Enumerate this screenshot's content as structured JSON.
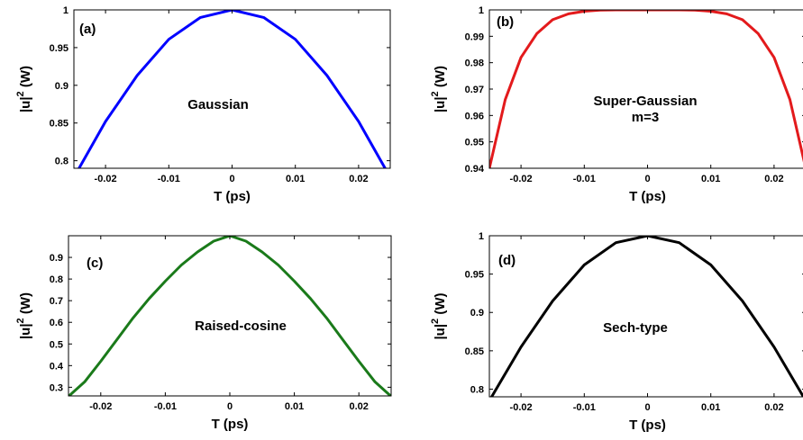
{
  "chart_data": [
    {
      "id": "a",
      "type": "line",
      "panel_label": "(a)",
      "annotation": [
        "Gaussian"
      ],
      "xlabel": "T (ps)",
      "ylabel_main": "|u|",
      "ylabel_sup": "2",
      "ylabel_unit": " (W)",
      "xlim": [
        -0.025,
        0.025
      ],
      "ylim": [
        0.79,
        1.0
      ],
      "xticks": [
        -0.02,
        -0.01,
        0,
        0.01,
        0.02
      ],
      "xtick_labels": [
        "-0.02",
        "-0.01",
        "0",
        "0.01",
        "0.02"
      ],
      "yticks": [
        0.8,
        0.85,
        0.9,
        0.95,
        1.0
      ],
      "ytick_labels": [
        "0.8",
        "0.85",
        "0.9",
        "0.95",
        "1"
      ],
      "color": "#0000ff",
      "x": [
        -0.025,
        -0.02,
        -0.015,
        -0.01,
        -0.005,
        0,
        0.005,
        0.01,
        0.015,
        0.02,
        0.025
      ],
      "y": [
        0.778,
        0.852,
        0.913,
        0.961,
        0.99,
        1.0,
        0.99,
        0.961,
        0.913,
        0.852,
        0.778
      ]
    },
    {
      "id": "b",
      "type": "line",
      "panel_label": "(b)",
      "annotation": [
        "Super-Gaussian",
        "m=3"
      ],
      "xlabel": "T (ps)",
      "ylabel_main": "|u|",
      "ylabel_sup": "2",
      "ylabel_unit": " (W)",
      "xlim": [
        -0.025,
        0.025
      ],
      "ylim": [
        0.94,
        1.0
      ],
      "xticks": [
        -0.02,
        -0.01,
        0,
        0.01,
        0.02
      ],
      "xtick_labels": [
        "-0.02",
        "-0.01",
        "0",
        "0.01",
        "0.02"
      ],
      "yticks": [
        0.94,
        0.95,
        0.96,
        0.97,
        0.98,
        0.99,
        1.0
      ],
      "ytick_labels": [
        "0.94",
        "0.95",
        "0.96",
        "0.97",
        "0.98",
        "0.99",
        "1"
      ],
      "color": "#e31a1c",
      "x": [
        -0.025,
        -0.0225,
        -0.02,
        -0.0175,
        -0.015,
        -0.0125,
        -0.01,
        -0.0075,
        -0.005,
        0,
        0.005,
        0.0075,
        0.01,
        0.0125,
        0.015,
        0.0175,
        0.02,
        0.0225,
        0.025
      ],
      "y": [
        0.94,
        0.966,
        0.982,
        0.991,
        0.9963,
        0.9985,
        0.9995,
        0.9999,
        1.0,
        1.0,
        1.0,
        0.9999,
        0.9995,
        0.9985,
        0.9963,
        0.991,
        0.982,
        0.966,
        0.94
      ]
    },
    {
      "id": "c",
      "type": "line",
      "panel_label": "(c)",
      "annotation": [
        "Raised-cosine"
      ],
      "xlabel": "T (ps)",
      "ylabel_main": "|u|",
      "ylabel_sup": "2",
      "ylabel_unit": " (W)",
      "xlim": [
        -0.025,
        0.025
      ],
      "ylim": [
        0.26,
        1.0
      ],
      "xticks": [
        -0.02,
        -0.01,
        0,
        0.01,
        0.02
      ],
      "xtick_labels": [
        "-0.02",
        "-0.01",
        "0",
        "0.01",
        "0.02"
      ],
      "yticks": [
        0.3,
        0.4,
        0.5,
        0.6,
        0.7,
        0.8,
        0.9
      ],
      "ytick_labels": [
        "0.3",
        "0.4",
        "0.5",
        "0.6",
        "0.7",
        "0.8",
        "0.9"
      ],
      "color": "#1a7a1a",
      "x": [
        -0.025,
        -0.0225,
        -0.02,
        -0.0175,
        -0.015,
        -0.0125,
        -0.01,
        -0.0075,
        -0.005,
        -0.0025,
        0,
        0.0025,
        0.005,
        0.0075,
        0.01,
        0.0125,
        0.015,
        0.0175,
        0.02,
        0.0225,
        0.025
      ],
      "y": [
        0.258,
        0.325,
        0.42,
        0.52,
        0.62,
        0.71,
        0.79,
        0.865,
        0.925,
        0.975,
        1.0,
        0.975,
        0.925,
        0.865,
        0.79,
        0.71,
        0.62,
        0.52,
        0.42,
        0.325,
        0.258
      ]
    },
    {
      "id": "d",
      "type": "line",
      "panel_label": "(d)",
      "annotation": [
        "Sech-type"
      ],
      "xlabel": "T (ps)",
      "ylabel_main": "|u|",
      "ylabel_sup": "2",
      "ylabel_unit": " (W)",
      "xlim": [
        -0.025,
        0.025
      ],
      "ylim": [
        0.79,
        1.0
      ],
      "xticks": [
        -0.02,
        -0.01,
        0,
        0.01,
        0.02
      ],
      "xtick_labels": [
        "-0.02",
        "-0.01",
        "0",
        "0.01",
        "0.02"
      ],
      "yticks": [
        0.8,
        0.85,
        0.9,
        0.95,
        1.0
      ],
      "ytick_labels": [
        "0.8",
        "0.85",
        "0.9",
        "0.95",
        "1"
      ],
      "color": "#000000",
      "x": [
        -0.025,
        -0.02,
        -0.015,
        -0.01,
        -0.005,
        0,
        0.005,
        0.01,
        0.015,
        0.02,
        0.025
      ],
      "y": [
        0.785,
        0.855,
        0.915,
        0.962,
        0.991,
        1.0,
        0.991,
        0.962,
        0.915,
        0.855,
        0.785
      ]
    }
  ]
}
